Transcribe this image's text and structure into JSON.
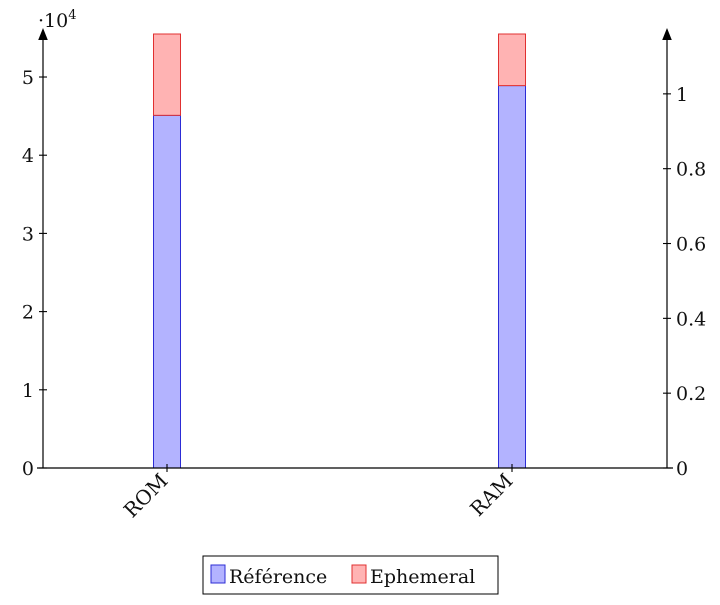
{
  "chart_data": {
    "type": "bar",
    "stacked": true,
    "categories": [
      "ROM",
      "RAM"
    ],
    "series": [
      {
        "name": "Référence",
        "values": [
          45100,
          48900
        ],
        "color": "#b3b3ff",
        "stroke": "#2c2cd6"
      },
      {
        "name": "Ephemeral",
        "values": [
          10400,
          6600
        ],
        "color": "#ffb3b3",
        "stroke": "#e03030"
      }
    ],
    "y_left": {
      "range": [
        0,
        55500
      ],
      "ticks": [
        0,
        10000,
        20000,
        30000,
        40000,
        50000
      ],
      "tick_labels": [
        "0",
        "1",
        "2",
        "3",
        "4",
        "5"
      ],
      "scale_label": "·10",
      "scale_exponent": "4"
    },
    "y_right": {
      "range": [
        0,
        1.16
      ],
      "ticks": [
        0,
        0.2,
        0.4,
        0.6,
        0.8,
        1
      ],
      "tick_labels": [
        "0",
        "0.2",
        "0.4",
        "0.6",
        "0.8",
        "1"
      ]
    },
    "legend_position": "bottom-center",
    "grid": false,
    "colors": {
      "axis": "#000000",
      "text": "#111111"
    }
  }
}
